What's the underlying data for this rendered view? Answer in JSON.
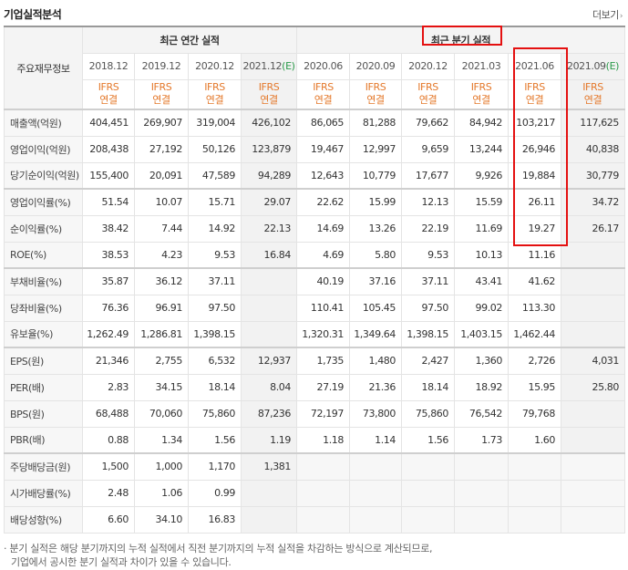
{
  "header": {
    "title": "기업실적분석",
    "more_label": "더보기"
  },
  "table": {
    "row_label_header": "주요재무정보",
    "group_annual": "최근 연간 실적",
    "group_quarter": "최근 분기 실적",
    "annual_periods": [
      "2018.12",
      "2019.12",
      "2020.12"
    ],
    "annual_estimate_period": "2021.12",
    "annual_estimate_mark": "(E)",
    "quarter_periods": [
      "2020.06",
      "2020.09",
      "2020.12",
      "2021.03",
      "2021.06"
    ],
    "quarter_estimate_period": "2021.09",
    "quarter_estimate_mark": "(E)",
    "std_top": "IFRS",
    "std_bottom": "연결",
    "rows": [
      {
        "label": "매출액(억원)",
        "values": [
          "404,451",
          "269,907",
          "319,004",
          "426,102",
          "86,065",
          "81,288",
          "79,662",
          "84,942",
          "103,217",
          "117,625"
        ]
      },
      {
        "label": "영업이익(억원)",
        "values": [
          "208,438",
          "27,192",
          "50,126",
          "123,879",
          "19,467",
          "12,997",
          "9,659",
          "13,244",
          "26,946",
          "40,838"
        ]
      },
      {
        "label": "당기순이익(억원)",
        "values": [
          "155,400",
          "20,091",
          "47,589",
          "94,289",
          "12,643",
          "10,779",
          "17,677",
          "9,926",
          "19,884",
          "30,779"
        ]
      },
      {
        "label": "영업이익률(%)",
        "values": [
          "51.54",
          "10.07",
          "15.71",
          "29.07",
          "22.62",
          "15.99",
          "12.13",
          "15.59",
          "26.11",
          "34.72"
        ]
      },
      {
        "label": "순이익률(%)",
        "values": [
          "38.42",
          "7.44",
          "14.92",
          "22.13",
          "14.69",
          "13.26",
          "22.19",
          "11.69",
          "19.27",
          "26.17"
        ]
      },
      {
        "label": "ROE(%)",
        "values": [
          "38.53",
          "4.23",
          "9.53",
          "16.84",
          "4.69",
          "5.80",
          "9.53",
          "10.13",
          "11.16",
          ""
        ]
      },
      {
        "label": "부채비율(%)",
        "values": [
          "35.87",
          "36.12",
          "37.11",
          "",
          "40.19",
          "37.16",
          "37.11",
          "43.41",
          "41.62",
          ""
        ]
      },
      {
        "label": "당좌비율(%)",
        "values": [
          "76.36",
          "96.91",
          "97.50",
          "",
          "110.41",
          "105.45",
          "97.50",
          "99.02",
          "113.30",
          ""
        ]
      },
      {
        "label": "유보율(%)",
        "values": [
          "1,262.49",
          "1,286.81",
          "1,398.15",
          "",
          "1,320.31",
          "1,349.64",
          "1,398.15",
          "1,403.15",
          "1,462.44",
          ""
        ]
      },
      {
        "label": "EPS(원)",
        "values": [
          "21,346",
          "2,755",
          "6,532",
          "12,937",
          "1,735",
          "1,480",
          "2,427",
          "1,360",
          "2,726",
          "4,031"
        ]
      },
      {
        "label": "PER(배)",
        "values": [
          "2.83",
          "34.15",
          "18.14",
          "8.04",
          "27.19",
          "21.36",
          "18.14",
          "18.92",
          "15.95",
          "25.80"
        ]
      },
      {
        "label": "BPS(원)",
        "values": [
          "68,488",
          "70,060",
          "75,860",
          "87,236",
          "72,197",
          "73,800",
          "75,860",
          "76,542",
          "79,768",
          ""
        ]
      },
      {
        "label": "PBR(배)",
        "values": [
          "0.88",
          "1.34",
          "1.56",
          "1.19",
          "1.18",
          "1.14",
          "1.56",
          "1.73",
          "1.60",
          ""
        ]
      },
      {
        "label": "주당배당금(원)",
        "values": [
          "1,500",
          "1,000",
          "1,170",
          "1,381",
          "",
          "",
          "",
          "",
          "",
          ""
        ]
      },
      {
        "label": "시가배당률(%)",
        "values": [
          "2.48",
          "1.06",
          "0.99",
          "",
          "",
          "",
          "",
          "",
          "",
          ""
        ]
      },
      {
        "label": "배당성향(%)",
        "values": [
          "6.60",
          "34.10",
          "16.83",
          "",
          "",
          "",
          "",
          "",
          "",
          ""
        ]
      }
    ]
  },
  "notes": {
    "line1": "· 분기 실적은 해당 분기까지의 누적 실적에서 직전 분기까지의 누적 실적을 차감하는 방식으로 계산되므로,",
    "line2": "기업에서 공시한 분기 실적과 차이가 있을 수 있습니다."
  }
}
